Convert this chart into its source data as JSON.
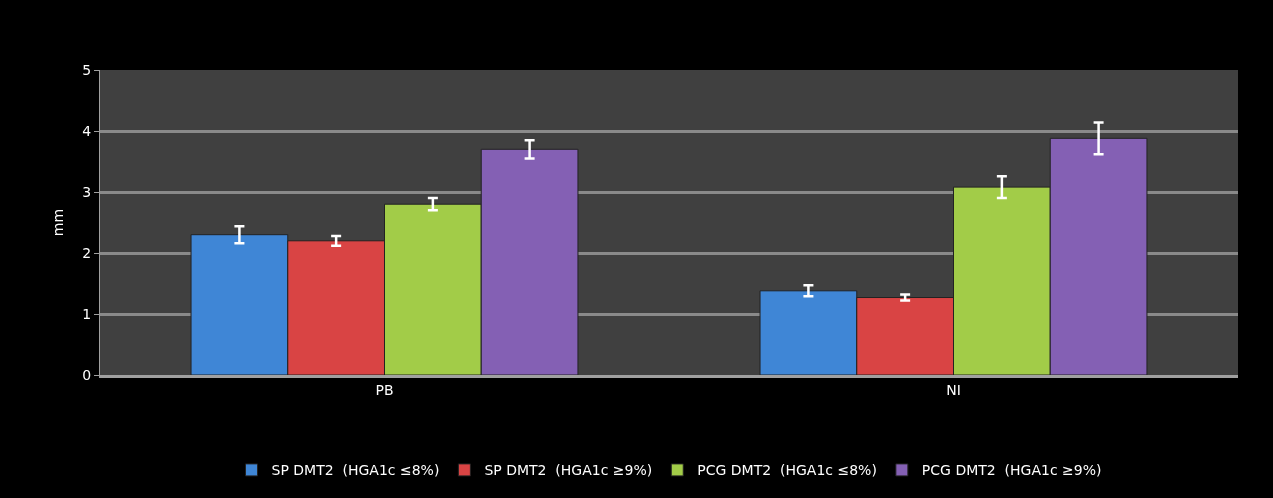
{
  "chart_data": {
    "type": "bar",
    "ylabel": "mm",
    "categories": [
      "PB",
      "NI"
    ],
    "series": [
      {
        "name": "SP DMT2  (HGA1c ≤8%)",
        "color": "#3f86d6",
        "values": [
          2.3,
          1.38
        ],
        "errors": [
          0.14,
          0.09
        ]
      },
      {
        "name": "SP DMT2  (HGA1c ≥9%)",
        "color": "#d94444",
        "values": [
          2.2,
          1.27
        ],
        "errors": [
          0.08,
          0.05
        ]
      },
      {
        "name": "PCG DMT2  (HGA1c ≤8%)",
        "color": "#a2cc48",
        "values": [
          2.8,
          3.08
        ],
        "errors": [
          0.1,
          0.18
        ]
      },
      {
        "name": "PCG DMT2  (HGA1c ≥9%)",
        "color": "#8460b4",
        "values": [
          3.7,
          3.88
        ],
        "errors": [
          0.15,
          0.26
        ]
      }
    ],
    "ylim": [
      0,
      5
    ],
    "yticks": [
      0,
      1,
      2,
      3,
      4,
      5
    ],
    "grid": "y",
    "legend": "bottom"
  }
}
